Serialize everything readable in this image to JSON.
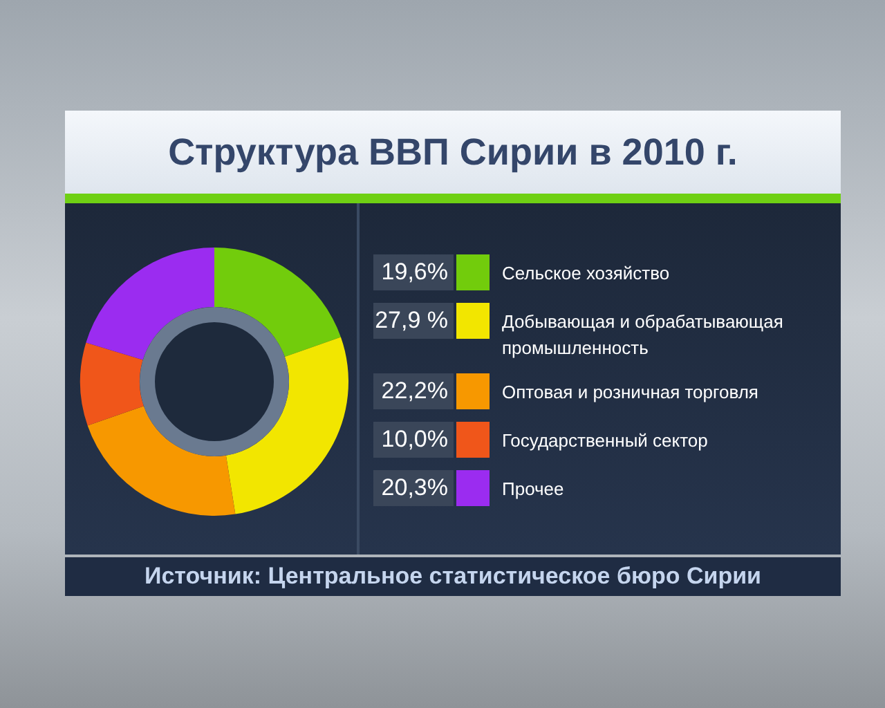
{
  "chart_data": {
    "type": "donut",
    "title": "Структура ВВП Сирии в 2010 г.",
    "categories": [
      "Сельское хозяйство",
      "Добывающая и обрабатывающая промышленность",
      "Оптовая и розничная торговля",
      "Государственный сектор",
      "Прочее"
    ],
    "values": [
      19.6,
      27.9,
      22.2,
      10.0,
      20.3
    ],
    "value_labels": [
      "19,6%",
      "27,9 %",
      "22,2%",
      "10,0%",
      "20,3%"
    ],
    "colors": [
      "#72cc0c",
      "#f2e600",
      "#f79800",
      "#f0561a",
      "#9b2cf0"
    ],
    "legend": "right",
    "annotations": [
      "Источник: Центральное статистическое бюро Сирии"
    ]
  }
}
